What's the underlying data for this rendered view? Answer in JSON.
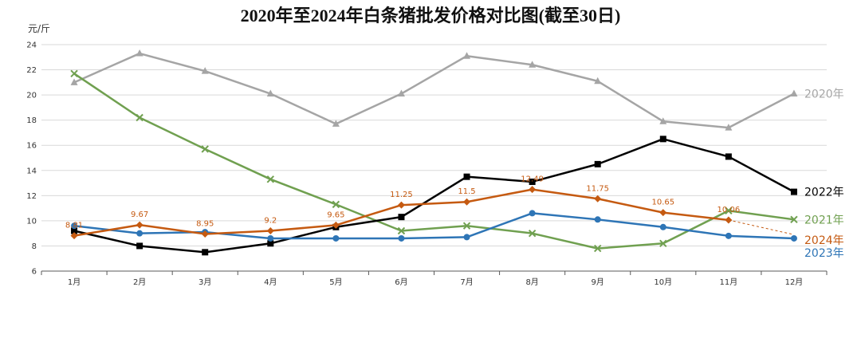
{
  "chart_data": {
    "type": "line",
    "title": "2020年至2024年白条猪批发价格对比图(截至30日)",
    "ylabel": "元/斤",
    "ylim": [
      6,
      24
    ],
    "yticks": [
      6,
      8,
      10,
      12,
      14,
      16,
      18,
      20,
      22,
      24
    ],
    "categories": [
      "1月",
      "2月",
      "3月",
      "4月",
      "5月",
      "6月",
      "7月",
      "8月",
      "9月",
      "10月",
      "11月",
      "12月"
    ],
    "grid": true,
    "series": [
      {
        "name": "2020年",
        "color": "#a5a5a5",
        "marker": "triangle",
        "values": [
          21.0,
          23.3,
          21.9,
          20.1,
          17.7,
          20.1,
          23.1,
          22.4,
          21.1,
          17.9,
          17.4,
          20.1
        ]
      },
      {
        "name": "2021年",
        "color": "#70a050",
        "marker": "x",
        "values": [
          21.7,
          18.2,
          15.7,
          13.3,
          11.3,
          9.2,
          9.6,
          9.0,
          7.8,
          8.2,
          10.8,
          10.1
        ]
      },
      {
        "name": "2022年",
        "color": "#000000",
        "marker": "square",
        "values": [
          9.2,
          8.0,
          7.5,
          8.2,
          9.5,
          10.3,
          13.5,
          13.1,
          14.5,
          16.5,
          15.1,
          12.3
        ]
      },
      {
        "name": "2023年",
        "color": "#2e75b6",
        "marker": "circle",
        "values": [
          9.6,
          9.0,
          9.1,
          8.6,
          8.6,
          8.6,
          8.7,
          10.6,
          10.1,
          9.5,
          8.8,
          8.6
        ]
      },
      {
        "name": "2024年",
        "color": "#c55a11",
        "marker": "diamond",
        "values": [
          8.81,
          9.67,
          8.95,
          9.2,
          9.65,
          11.25,
          11.5,
          12.49,
          11.75,
          10.65,
          10.06,
          8.9
        ],
        "data_labels": [
          "8.81",
          "9.67",
          "8.95",
          "9.2",
          "9.65",
          "11.25",
          "11.5",
          "12.49",
          "11.75",
          "10.65",
          "10.06",
          ""
        ]
      }
    ]
  }
}
